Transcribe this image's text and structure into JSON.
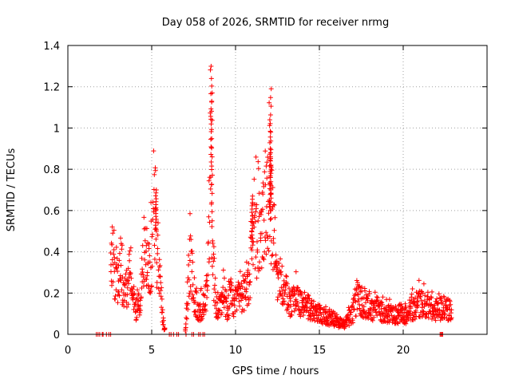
{
  "chart_data": {
    "type": "scatter",
    "title": "Day 058 of 2026, SRMTID for receiver nrmg",
    "xlabel": "GPS time / hours",
    "ylabel": "SRMTID / TECUs",
    "xlim": [
      0,
      25
    ],
    "ylim": [
      0,
      1.4
    ],
    "xticks": [
      0,
      5,
      10,
      15,
      20
    ],
    "xtick_labels": [
      "0",
      "5",
      "10",
      "15",
      "20"
    ],
    "yticks": [
      0,
      0.2,
      0.4,
      0.6,
      0.8,
      1.0,
      1.2,
      1.4
    ],
    "ytick_labels": [
      "0",
      "0.2",
      "0.4",
      "0.6",
      "0.8",
      "1",
      "1.2",
      "1.4"
    ],
    "grid": true,
    "marker": "plus",
    "color": "#ff0000",
    "series": [
      {
        "name": "SRMTID",
        "profile_x": [
          1.7,
          2.5,
          2.55,
          2.7,
          2.9,
          3.2,
          3.3,
          3.5,
          3.8,
          4.0,
          4.1,
          4.3,
          4.6,
          4.9,
          5.1,
          5.2,
          5.3,
          5.45,
          5.6,
          5.8,
          6.0,
          6.5,
          7.0,
          7.3,
          7.5,
          7.8,
          8.1,
          8.3,
          8.45,
          8.5,
          8.6,
          8.7,
          8.8,
          9.0,
          9.3,
          9.5,
          9.7,
          9.9,
          10.2,
          10.5,
          10.8,
          11.0,
          11.3,
          11.5,
          11.7,
          11.9,
          12.0,
          12.1,
          12.2,
          12.3,
          12.5,
          12.8,
          13.0,
          13.3,
          13.6,
          14.0,
          14.5,
          15.0,
          15.5,
          16.0,
          16.5,
          17.0,
          17.3,
          17.6,
          18.0,
          18.5,
          19.0,
          19.5,
          20.0,
          20.5,
          21.0,
          21.5,
          22.0,
          22.5,
          22.9
        ],
        "profile_y": [
          0.0,
          0.0,
          0.3,
          0.3,
          0.25,
          0.35,
          0.15,
          0.22,
          0.33,
          0.1,
          0.12,
          0.16,
          0.45,
          0.3,
          0.55,
          0.62,
          0.38,
          0.3,
          0.12,
          0.0,
          0.0,
          0.0,
          0.0,
          0.38,
          0.2,
          0.1,
          0.15,
          0.18,
          0.5,
          0.9,
          0.55,
          0.28,
          0.15,
          0.12,
          0.18,
          0.1,
          0.2,
          0.12,
          0.22,
          0.18,
          0.25,
          0.45,
          0.5,
          0.45,
          0.55,
          0.6,
          0.7,
          0.6,
          0.55,
          0.45,
          0.28,
          0.22,
          0.2,
          0.15,
          0.18,
          0.13,
          0.12,
          0.1,
          0.08,
          0.06,
          0.05,
          0.1,
          0.2,
          0.13,
          0.12,
          0.12,
          0.1,
          0.09,
          0.08,
          0.12,
          0.15,
          0.13,
          0.12,
          0.13,
          0.11
        ],
        "zero_points_x": [
          1.7,
          1.8,
          1.9,
          2.05,
          2.1,
          2.3,
          2.45,
          2.55,
          6.05,
          6.15,
          6.3,
          6.5,
          6.6,
          7.05,
          7.4,
          7.5,
          7.8,
          7.9,
          8.05,
          8.15,
          22.2,
          22.25,
          22.3,
          22.35
        ],
        "peaks": [
          {
            "x": 8.55,
            "y": 1.24
          },
          {
            "x": 8.6,
            "y": 1.17
          },
          {
            "x": 12.1,
            "y": 1.19
          },
          {
            "x": 12.05,
            "y": 1.04
          },
          {
            "x": 12.1,
            "y": 0.88
          },
          {
            "x": 5.25,
            "y": 0.7
          },
          {
            "x": 11.0,
            "y": 0.67
          }
        ]
      }
    ]
  }
}
